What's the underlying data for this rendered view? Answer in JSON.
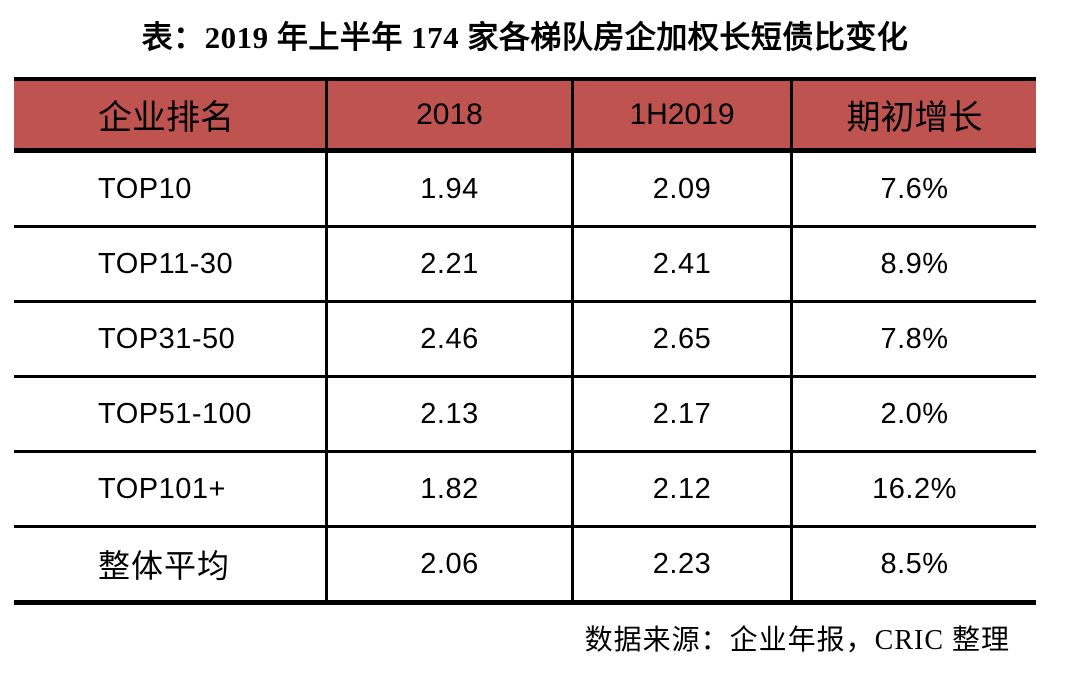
{
  "chart_data": {
    "type": "table",
    "title": "表：2019 年上半年 174 家各梯队房企加权长短债比变化",
    "columns": [
      "企业排名",
      "2018",
      "1H2019",
      "期初增长"
    ],
    "rows": [
      [
        "TOP10",
        "1.94",
        "2.09",
        "7.6%"
      ],
      [
        "TOP11-30",
        "2.21",
        "2.41",
        "8.9%"
      ],
      [
        "TOP31-50",
        "2.46",
        "2.65",
        "7.8%"
      ],
      [
        "TOP51-100",
        "2.13",
        "2.17",
        "2.0%"
      ],
      [
        "TOP101+",
        "1.82",
        "2.12",
        "16.2%"
      ],
      [
        "整体平均",
        "2.06",
        "2.23",
        "8.5%"
      ]
    ],
    "source_note": "数据来源：企业年报，CRIC 整理",
    "layout_hints": {
      "header_bg_color": "#BF5350",
      "border_color": "#000000",
      "text_color": "#000000",
      "first_column_align": "left",
      "other_columns_align": "center"
    }
  }
}
